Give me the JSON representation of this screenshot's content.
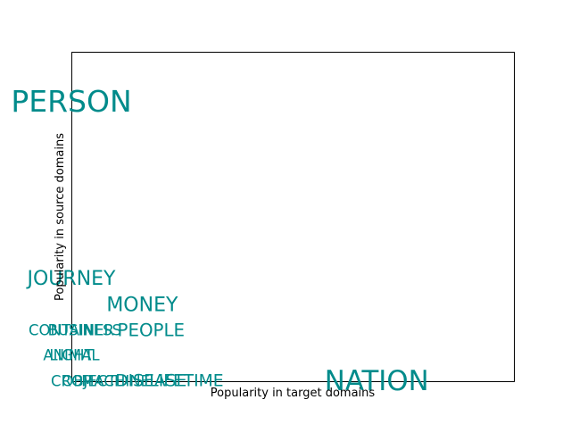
{
  "chart_data": {
    "type": "scatter",
    "title": "",
    "xlabel": "Popularity in target domains",
    "ylabel": "Popularity in source domains",
    "xlim": [
      0,
      10
    ],
    "ylim": [
      0,
      10
    ],
    "grid": false,
    "show_ticks": false,
    "text_color": "#008b8b",
    "points": [
      {
        "label": "PERSON",
        "x": 0,
        "y": 8.5,
        "weight": 3
      },
      {
        "label": "JOURNEY",
        "x": 0,
        "y": 3.1,
        "weight": 2
      },
      {
        "label": "MONEY",
        "x": 1.6,
        "y": 2.3,
        "weight": 2
      },
      {
        "label": "PEOPLE",
        "x": 1.8,
        "y": 1.55,
        "weight": 1.8
      },
      {
        "label": "CONTAINER",
        "x": 0,
        "y": 1.55,
        "weight": 1.5
      },
      {
        "label": "BUSINESS",
        "x": 0.3,
        "y": 1.55,
        "weight": 1.5
      },
      {
        "label": "LIGHT",
        "x": 0,
        "y": 0.78,
        "weight": 1.5
      },
      {
        "label": "ANIMAL",
        "x": 0,
        "y": 0.78,
        "weight": 1.5
      },
      {
        "label": "NATION",
        "x": 6.9,
        "y": 0,
        "weight": 2.8
      },
      {
        "label": "LIFETIME",
        "x": 2.6,
        "y": 0,
        "weight": 1.7
      },
      {
        "label": "DISEASE",
        "x": 1.8,
        "y": 0,
        "weight": 1.7
      },
      {
        "label": "OBJECT",
        "x": 0.4,
        "y": 0,
        "weight": 1.5
      },
      {
        "label": "MACHINE",
        "x": 1.0,
        "y": 0,
        "weight": 1.5
      },
      {
        "label": "CROP",
        "x": 0,
        "y": 0,
        "weight": 1.5
      }
    ]
  }
}
